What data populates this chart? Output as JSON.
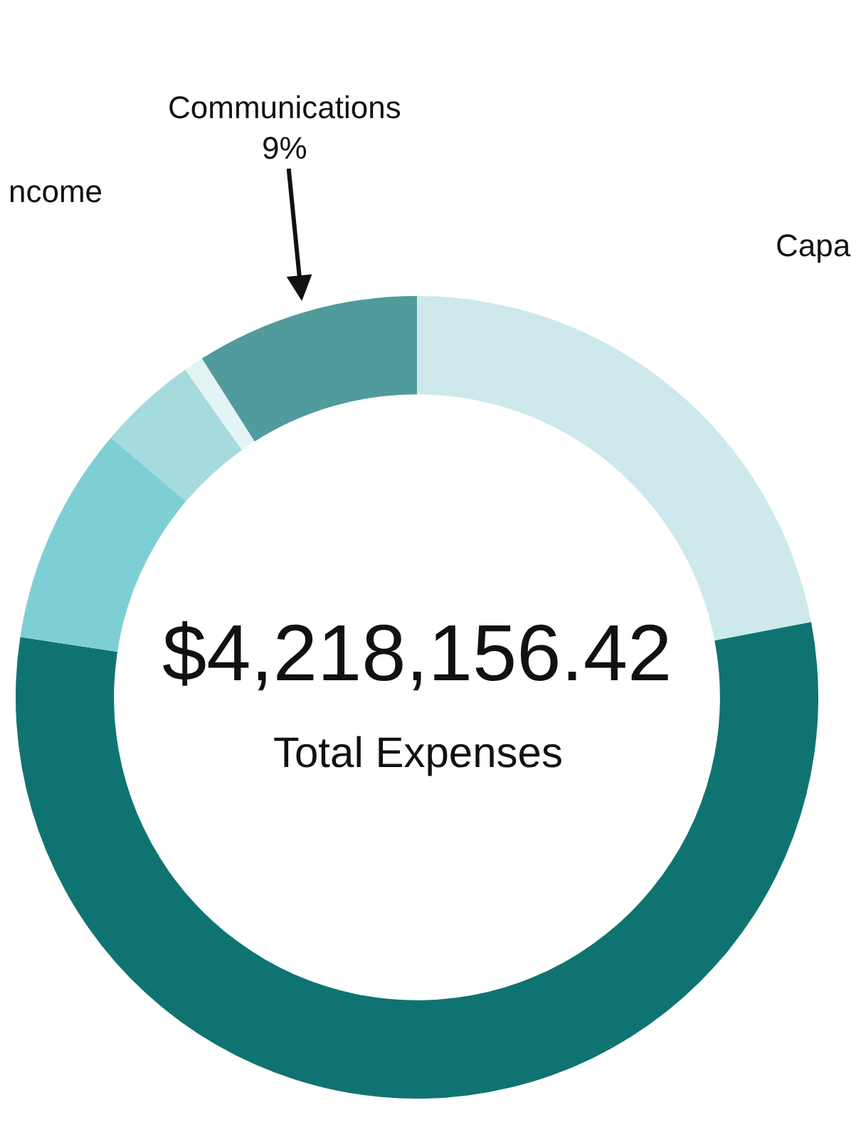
{
  "chart_data": {
    "type": "donut",
    "title": "$4,218,156.42",
    "subtitle": "Total Expenses",
    "categories": [
      null,
      null,
      null,
      null,
      null,
      "Communications"
    ],
    "values": [
      22,
      55.4,
      8.8,
      4,
      0.8,
      9
    ],
    "value_labels": [
      null,
      null,
      null,
      null,
      null,
      "9%"
    ],
    "colors": [
      "#cde9ec",
      "#0f7471",
      "#7ecfd4",
      "#a5dade",
      "#e3f4f5",
      "#519b9c"
    ],
    "annotations": [
      "ncome",
      "Capa"
    ],
    "legend": false
  }
}
